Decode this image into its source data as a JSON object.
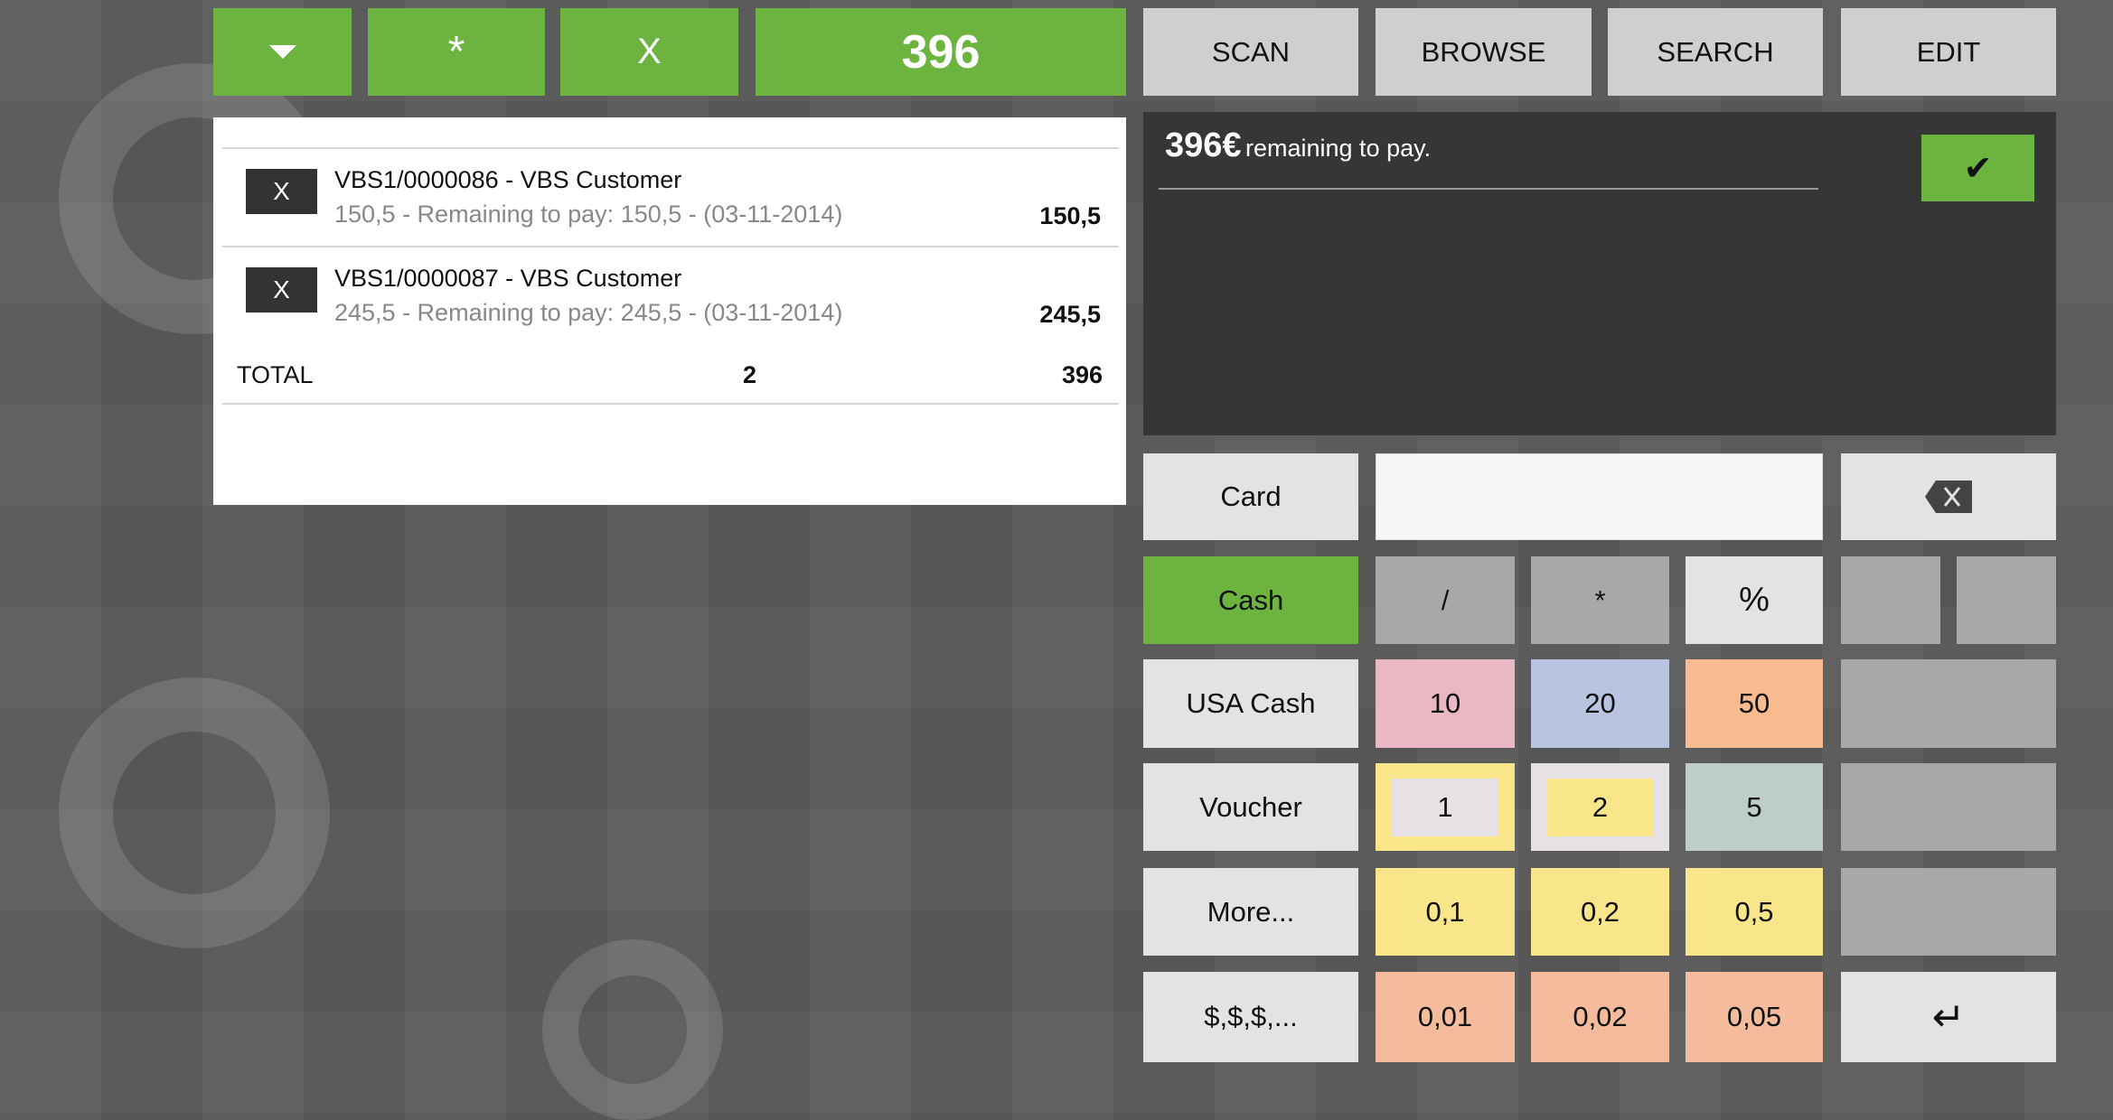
{
  "toolbar": {
    "dropdown_icon": "triangle-down",
    "star_label": "*",
    "clear_label": "X",
    "total": "396"
  },
  "nav": {
    "scan": "SCAN",
    "browse": "BROWSE",
    "search": "SEARCH",
    "edit": "EDIT"
  },
  "receipt": {
    "lines": [
      {
        "remove": "X",
        "title": "VBS1/0000086 - VBS Customer",
        "subtitle": "150,5 - Remaining to pay: 150,5 - (03-11-2014)",
        "amount": "150,5"
      },
      {
        "remove": "X",
        "title": "VBS1/0000087 - VBS Customer",
        "subtitle": "245,5 - Remaining to pay: 245,5 - (03-11-2014)",
        "amount": "245,5"
      }
    ],
    "total_label": "TOTAL",
    "total_count": "2",
    "total_amount": "396"
  },
  "payment": {
    "amount": "396€",
    "message": "remaining to pay.",
    "confirm_icon": "checkmark"
  },
  "keypad": {
    "input_value": "",
    "methods": [
      "Card",
      "Cash",
      "USA Cash",
      "Voucher",
      "More...",
      "$,$,$,..."
    ],
    "ops": [
      "/",
      "*",
      "%"
    ],
    "keys": [
      [
        "10",
        "20",
        "50"
      ],
      [
        "1",
        "2",
        "5"
      ],
      [
        "0,1",
        "0,2",
        "0,5"
      ],
      [
        "0,01",
        "0,02",
        "0,05"
      ]
    ],
    "backspace_icon": "backspace",
    "enter_icon": "enter"
  },
  "colors": {
    "accent": "#6db33f",
    "k10": "#eab8c4",
    "k20": "#b8c4e0",
    "k50": "#f8bb90",
    "k1": "#f9e58a",
    "k2": "#e6e1e4",
    "k5": "#bccec5",
    "dec": "#f9e58a",
    "cent": "#f4bc9c"
  }
}
